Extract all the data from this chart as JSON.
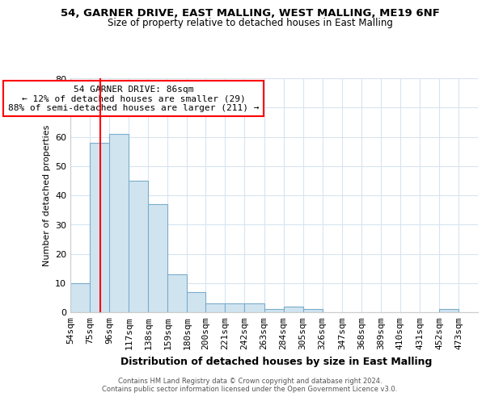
{
  "title1": "54, GARNER DRIVE, EAST MALLING, WEST MALLING, ME19 6NF",
  "title2": "Size of property relative to detached houses in East Malling",
  "xlabel": "Distribution of detached houses by size in East Malling",
  "ylabel": "Number of detached properties",
  "bin_labels": [
    "54sqm",
    "75sqm",
    "96sqm",
    "117sqm",
    "138sqm",
    "159sqm",
    "180sqm",
    "200sqm",
    "221sqm",
    "242sqm",
    "263sqm",
    "284sqm",
    "305sqm",
    "326sqm",
    "347sqm",
    "368sqm",
    "389sqm",
    "410sqm",
    "431sqm",
    "452sqm",
    "473sqm"
  ],
  "bin_edges": [
    54,
    75,
    96,
    117,
    138,
    159,
    180,
    200,
    221,
    242,
    263,
    284,
    305,
    326,
    347,
    368,
    389,
    410,
    431,
    452,
    473,
    494
  ],
  "bar_values": [
    10,
    58,
    61,
    45,
    37,
    13,
    7,
    3,
    3,
    3,
    1,
    2,
    1,
    0,
    0,
    0,
    0,
    0,
    0,
    1,
    0
  ],
  "bar_color": "#d0e4f0",
  "bar_edge_color": "#7aadcc",
  "vline_x": 86,
  "vline_color": "red",
  "annotation_text": "54 GARNER DRIVE: 86sqm\n← 12% of detached houses are smaller (29)\n88% of semi-detached houses are larger (211) →",
  "annotation_box_color": "white",
  "annotation_box_edge_color": "red",
  "ylim": [
    0,
    80
  ],
  "yticks": [
    0,
    10,
    20,
    30,
    40,
    50,
    60,
    70,
    80
  ],
  "footer1": "Contains HM Land Registry data © Crown copyright and database right 2024.",
  "footer2": "Contains public sector information licensed under the Open Government Licence v3.0.",
  "background_color": "#ffffff",
  "plot_bg_color": "#ffffff",
  "grid_color": "#d8e4f0"
}
